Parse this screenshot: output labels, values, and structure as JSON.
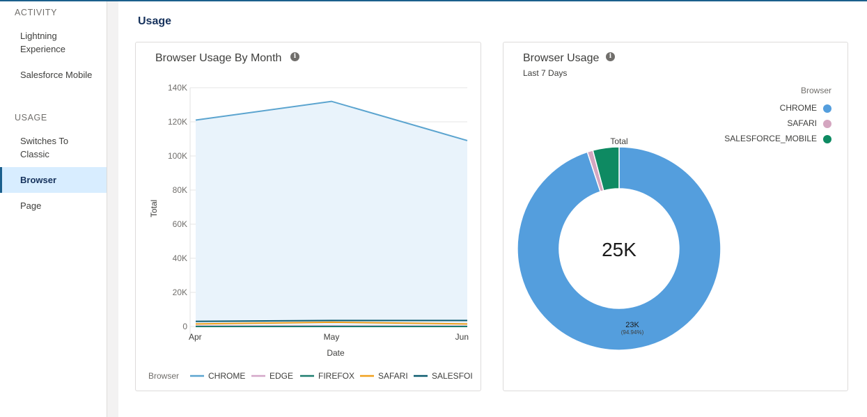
{
  "sidebar": {
    "sections": [
      {
        "label": "ACTIVITY",
        "items": [
          {
            "label": "Lightning Experience"
          },
          {
            "label": "Salesforce Mobile"
          }
        ]
      },
      {
        "label": "USAGE",
        "items": [
          {
            "label": "Switches To Classic"
          },
          {
            "label": "Browser",
            "active": true
          },
          {
            "label": "Page"
          }
        ]
      }
    ]
  },
  "main": {
    "title": "Usage"
  },
  "charts": {
    "monthly": {
      "title": "Browser Usage By Month",
      "info_icon": "info-icon"
    },
    "donut": {
      "title": "Browser Usage",
      "subtitle": "Last 7 Days",
      "info_icon": "info-icon",
      "center_label": "25K",
      "ring_title": "Total",
      "slice_label_value": "23K",
      "slice_label_pct": "(94.94%)",
      "legend_title": "Browser"
    }
  },
  "colors": {
    "CHROME_line": "#5ba4cf",
    "CHROME_area": "#e9f3fb",
    "EDGE": "#d4a6c8",
    "FIREFOX": "#1c7c6e",
    "SAFARI": "#f0a01c",
    "SALESFORCE_MOBILE_line": "#0a5a6e",
    "donut_chrome": "#549edd",
    "donut_safari": "#d4a6c0",
    "donut_mobile": "#0e8a62"
  },
  "chart_data": [
    {
      "type": "area",
      "title": "Browser Usage By Month",
      "xlabel": "Date",
      "ylabel": "Total",
      "x": [
        "Apr",
        "May",
        "Jun"
      ],
      "ylim": [
        0,
        140000
      ],
      "yticks": [
        0,
        20000,
        40000,
        60000,
        80000,
        100000,
        120000,
        140000
      ],
      "ytick_labels": [
        "0",
        "20K",
        "40K",
        "60K",
        "80K",
        "100K",
        "120K",
        "140K"
      ],
      "grid": true,
      "legend_title": "Browser",
      "legend_position": "bottom",
      "series": [
        {
          "name": "CHROME",
          "values": [
            121000,
            132000,
            109000
          ]
        },
        {
          "name": "EDGE",
          "values": [
            300,
            400,
            200
          ]
        },
        {
          "name": "FIREFOX",
          "values": [
            0,
            0,
            0
          ]
        },
        {
          "name": "SAFARI",
          "values": [
            1500,
            2500,
            1500
          ]
        },
        {
          "name": "SALESFORCE_MOBILE",
          "legend_label": "SALESFOI",
          "values": [
            3000,
            3500,
            3500
          ]
        }
      ]
    },
    {
      "type": "pie",
      "title": "Browser Usage",
      "subtitle": "Last 7 Days",
      "donut": true,
      "total_label": "25K",
      "legend_title": "Browser",
      "legend_position": "top-right",
      "slices": [
        {
          "name": "CHROME",
          "percent": 94.94,
          "label": "23K"
        },
        {
          "name": "SAFARI",
          "percent": 0.9
        },
        {
          "name": "SALESFORCE_MOBILE",
          "percent": 4.16
        }
      ]
    }
  ]
}
